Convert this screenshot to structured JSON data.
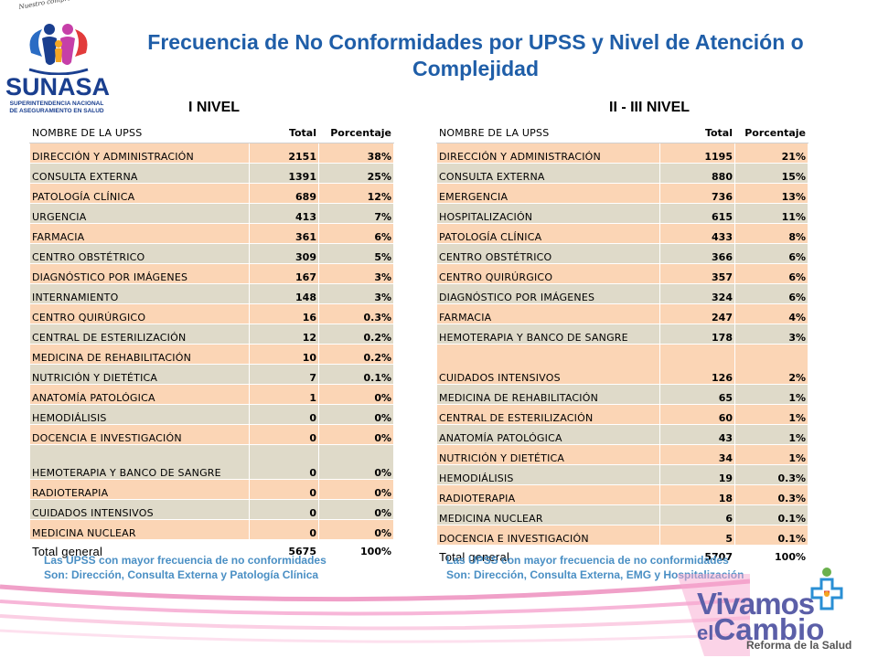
{
  "title": "Frecuencia de No Conformidades por UPSS y Nivel de Atención o Complejidad",
  "logos": {
    "sunasa_tagline": "Nuestro compromiso es velar por tu Salud",
    "sunasa_name": "SUNASA",
    "sunasa_sub": "SUPERINTENDENCIA NACIONAL DE ASEGURAMIENTO EN SALUD",
    "vivamos_word1": "Vivamos",
    "vivamos_el": "el",
    "vivamos_word2": "Cambio",
    "vivamos_tag": "Reforma de la Salud"
  },
  "colors": {
    "title": "#1f5ea8",
    "row_peach": "#fbd5b5",
    "row_gray": "#dfdac9",
    "note": "#4a8fc4"
  },
  "level1": {
    "label": "I NIVEL",
    "headers": [
      "NOMBRE DE LA UPSS",
      "Total",
      "Porcentaje"
    ],
    "rows": [
      {
        "name": "DIRECCIÓN Y ADMINISTRACIÓN",
        "total": "2151",
        "pct": "38%"
      },
      {
        "name": "CONSULTA EXTERNA",
        "total": "1391",
        "pct": "25%"
      },
      {
        "name": "PATOLOGÍA CLÍNICA",
        "total": "689",
        "pct": "12%"
      },
      {
        "name": "URGENCIA",
        "total": "413",
        "pct": "7%"
      },
      {
        "name": "FARMACIA",
        "total": "361",
        "pct": "6%"
      },
      {
        "name": "CENTRO OBSTÉTRICO",
        "total": "309",
        "pct": "5%"
      },
      {
        "name": "DIAGNÓSTICO POR IMÁGENES",
        "total": "167",
        "pct": "3%"
      },
      {
        "name": "INTERNAMIENTO",
        "total": "148",
        "pct": "3%"
      },
      {
        "name": "CENTRO QUIRÚRGICO",
        "total": "16",
        "pct": "0.3%"
      },
      {
        "name": "CENTRAL DE ESTERILIZACIÓN",
        "total": "12",
        "pct": "0.2%"
      },
      {
        "name": "MEDICINA DE REHABILITACIÓN",
        "total": "10",
        "pct": "0.2%"
      },
      {
        "name": "NUTRICIÓN Y DIETÉTICA",
        "total": "7",
        "pct": "0.1%"
      },
      {
        "name": "ANATOMÍA PATOLÓGICA",
        "total": "1",
        "pct": "0%"
      },
      {
        "name": "HEMODIÁLISIS",
        "total": "0",
        "pct": "0%"
      },
      {
        "name": "DOCENCIA E INVESTIGACIÓN",
        "total": "0",
        "pct": "0%"
      },
      {
        "name": "HEMOTERAPIA Y BANCO DE SANGRE",
        "total": "0",
        "pct": "0%"
      },
      {
        "name": "RADIOTERAPIA",
        "total": "0",
        "pct": "0%"
      },
      {
        "name": "CUIDADOS INTENSIVOS",
        "total": "0",
        "pct": "0%"
      },
      {
        "name": "MEDICINA NUCLEAR",
        "total": "0",
        "pct": "0%"
      }
    ],
    "total_label": "Total general",
    "total_value": "5675",
    "total_pct": "100%",
    "note_line1": "Las UPSS con mayor frecuencia de no conformidades",
    "note_line2": "Son: Dirección, Consulta Externa y Patología Clínica"
  },
  "level23": {
    "label": "II - III NIVEL",
    "headers": [
      "NOMBRE DE LA UPSS",
      "Total",
      "Porcentaje"
    ],
    "rows": [
      {
        "name": "DIRECCIÓN Y ADMINISTRACIÓN",
        "total": "1195",
        "pct": "21%"
      },
      {
        "name": "CONSULTA EXTERNA",
        "total": "880",
        "pct": "15%"
      },
      {
        "name": "EMERGENCIA",
        "total": "736",
        "pct": "13%"
      },
      {
        "name": "HOSPITALIZACIÓN",
        "total": "615",
        "pct": "11%"
      },
      {
        "name": "PATOLOGÍA CLÍNICA",
        "total": "433",
        "pct": "8%"
      },
      {
        "name": "CENTRO OBSTÉTRICO",
        "total": "366",
        "pct": "6%"
      },
      {
        "name": "CENTRO QUIRÚRGICO",
        "total": "357",
        "pct": "6%"
      },
      {
        "name": "DIAGNÓSTICO POR IMÁGENES",
        "total": "324",
        "pct": "6%"
      },
      {
        "name": "FARMACIA",
        "total": "247",
        "pct": "4%"
      },
      {
        "name": "HEMOTERAPIA Y BANCO DE SANGRE",
        "total": "178",
        "pct": "3%"
      },
      {
        "name": "CUIDADOS INTENSIVOS",
        "total": "126",
        "pct": "2%"
      },
      {
        "name": "MEDICINA DE REHABILITACIÓN",
        "total": "65",
        "pct": "1%"
      },
      {
        "name": "CENTRAL DE ESTERILIZACIÓN",
        "total": "60",
        "pct": "1%"
      },
      {
        "name": "ANATOMÍA PATOLÓGICA",
        "total": "43",
        "pct": "1%"
      },
      {
        "name": "NUTRICIÓN Y DIETÉTICA",
        "total": "34",
        "pct": "1%"
      },
      {
        "name": "HEMODIÁLISIS",
        "total": "19",
        "pct": "0.3%"
      },
      {
        "name": "RADIOTERAPIA",
        "total": "18",
        "pct": "0.3%"
      },
      {
        "name": "MEDICINA NUCLEAR",
        "total": "6",
        "pct": "0.1%"
      },
      {
        "name": "DOCENCIA E INVESTIGACIÓN",
        "total": "5",
        "pct": "0.1%"
      }
    ],
    "total_label": "Total general",
    "total_value": "5707",
    "total_pct": "100%",
    "note_line1": "Las UPSS con mayor frecuencia de no conformidades",
    "note_line2": "Son: Dirección, Consulta Externa, EMG y Hospitalización"
  }
}
